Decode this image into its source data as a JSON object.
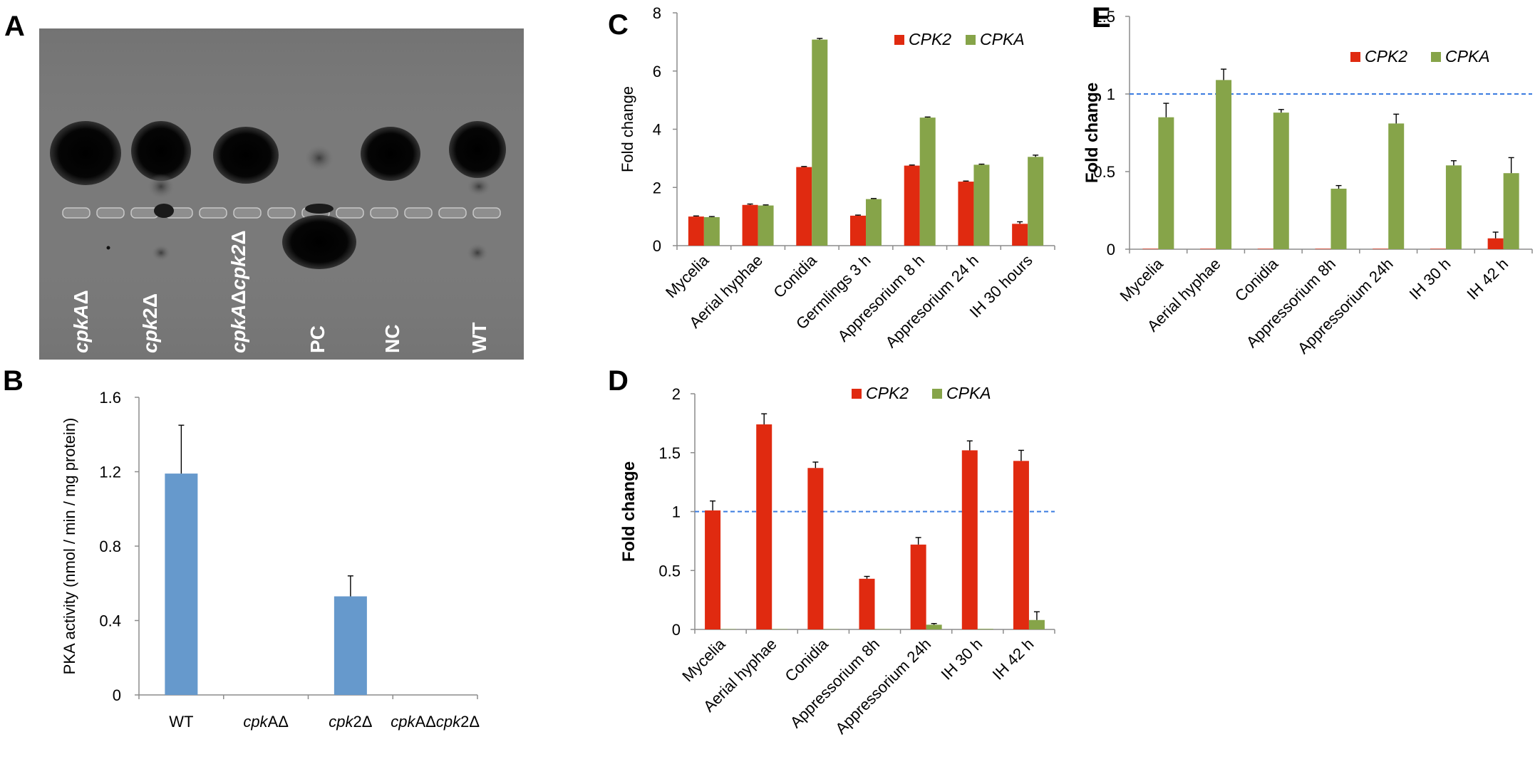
{
  "colors": {
    "cpk2": "#e02a10",
    "cpka": "#86a449",
    "pka_bar": "#6699cc",
    "ref_line": "#3a7be0",
    "gel_background": "#7a7a7a"
  },
  "panel_a": {
    "letter": "A",
    "lanes": [
      {
        "label_italic": "cpkA",
        "label_rest": "Δ"
      },
      {
        "label_italic": "cpk",
        "label_rest": "2Δ"
      },
      {
        "label_italic": "cpkA",
        "label_rest": "Δ",
        "label_italic2": "cpk2",
        "label_rest2": "Δ"
      },
      {
        "label_italic": "",
        "label_rest": "PC"
      },
      {
        "label_italic": "",
        "label_rest": "NC"
      },
      {
        "label_italic": "",
        "label_rest": "WT"
      }
    ]
  },
  "chart_data": [
    {
      "panel": "B",
      "type": "bar",
      "ylabel": "PKA activity (nmol / min / mg protein)",
      "ylim": [
        0,
        1.6
      ],
      "yticks": [
        0,
        0.4,
        0.8,
        1.2,
        1.6
      ],
      "ytick_labels": [
        "0",
        "0.4",
        "0.8",
        "1.2",
        "1.6"
      ],
      "categories": [
        {
          "it": "",
          "rest": "WT"
        },
        {
          "it": "cpk",
          "rest": "AΔ"
        },
        {
          "it": "cpk",
          "rest": "2Δ"
        },
        {
          "it": "cpk",
          "rest": "AΔ",
          "it2": "cpk",
          "rest2": "2Δ"
        }
      ],
      "series": [
        {
          "values": [
            1.19,
            0,
            0.53,
            0
          ],
          "errors": [
            0.26,
            0,
            0.11,
            0
          ]
        }
      ]
    },
    {
      "panel": "C",
      "type": "bar",
      "ylabel": "Fold change",
      "ylim": [
        0,
        8
      ],
      "yticks": [
        0,
        2,
        4,
        6,
        8
      ],
      "ytick_labels": [
        "0",
        "2",
        "4",
        "6",
        "8"
      ],
      "categories": [
        "Mycelia",
        "Aerial hyphae",
        "Conidia",
        "Germlings 3 h",
        "Appresorium 8 h",
        "Appresorium 24 h",
        "IH 30 hours"
      ],
      "legend_position": "top-right",
      "series": [
        {
          "name": "CPK2",
          "values": [
            1.0,
            1.4,
            2.7,
            1.03,
            2.75,
            2.2,
            0.75
          ],
          "errors": [
            0.02,
            0.03,
            0.02,
            0.02,
            0.02,
            0.02,
            0.07
          ]
        },
        {
          "name": "CPKA",
          "values": [
            0.98,
            1.38,
            7.08,
            1.6,
            4.4,
            2.78,
            3.05
          ],
          "errors": [
            0.02,
            0.02,
            0.04,
            0.02,
            0.02,
            0.02,
            0.06
          ]
        }
      ]
    },
    {
      "panel": "D",
      "type": "bar",
      "ylabel": "Fold change",
      "ylim": [
        0,
        2
      ],
      "yticks": [
        0,
        0.5,
        1,
        1.5,
        2
      ],
      "ytick_labels": [
        "0",
        "0.5",
        "1",
        "1.5",
        "2"
      ],
      "reference_line": 1,
      "categories": [
        "Mycelia",
        "Aerial hyphae",
        "Conidia",
        "Appressorium 8h",
        "Appressorium 24h",
        "IH 30 h",
        "IH 42 h"
      ],
      "legend_position": "top-right",
      "series": [
        {
          "name": "CPK2",
          "values": [
            1.01,
            1.74,
            1.37,
            0.43,
            0.72,
            1.52,
            1.43
          ],
          "errors": [
            0.08,
            0.09,
            0.05,
            0.02,
            0.06,
            0.08,
            0.09
          ]
        },
        {
          "name": "CPKA",
          "values": [
            0.003,
            0.003,
            0.003,
            0.003,
            0.04,
            0.005,
            0.08
          ],
          "errors": [
            0,
            0,
            0,
            0,
            0.01,
            0,
            0.07
          ]
        }
      ]
    },
    {
      "panel": "E",
      "type": "bar",
      "ylabel": "Fold change",
      "ylim": [
        0,
        1.5
      ],
      "yticks": [
        0,
        0.5,
        1,
        1.5
      ],
      "ytick_labels": [
        "0",
        "0.5",
        "1",
        "1.5"
      ],
      "reference_line": 1,
      "categories": [
        "Mycelia",
        "Aerial hyphae",
        "Conidia",
        "Appressorium 8h",
        "Appressorium 24h",
        "IH 30 h",
        "IH 42 h"
      ],
      "legend_position": "top-right",
      "series": [
        {
          "name": "CPK2",
          "values": [
            0.003,
            0.003,
            0.003,
            0.003,
            0.003,
            0.003,
            0.07
          ],
          "errors": [
            0,
            0,
            0,
            0,
            0,
            0,
            0.04
          ]
        },
        {
          "name": "CPKA",
          "values": [
            0.85,
            1.09,
            0.88,
            0.39,
            0.81,
            0.54,
            0.49
          ],
          "errors": [
            0.09,
            0.07,
            0.02,
            0.02,
            0.06,
            0.03,
            0.1
          ]
        }
      ]
    }
  ]
}
